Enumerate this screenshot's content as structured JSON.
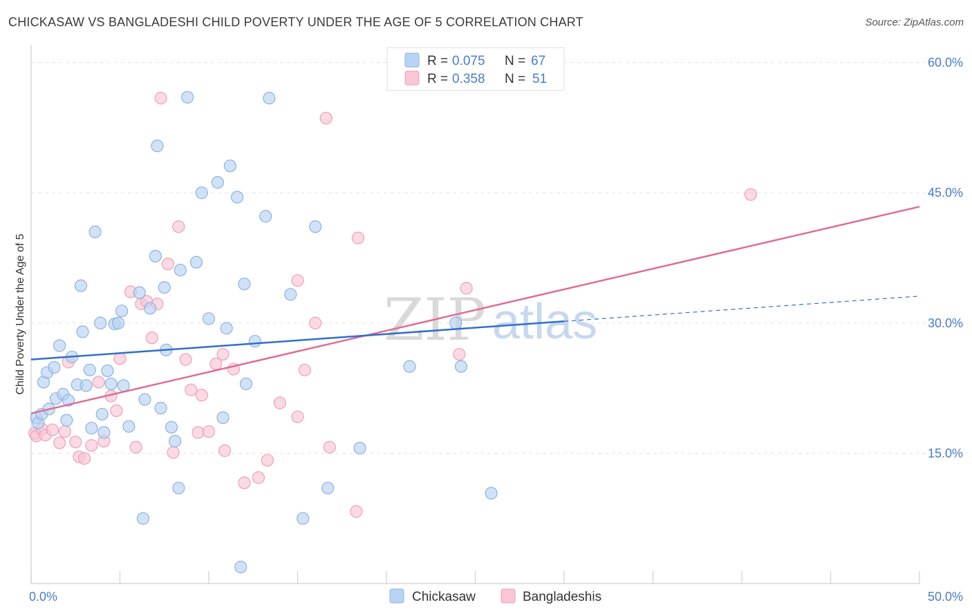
{
  "title": "CHICKASAW VS BANGLADESHI CHILD POVERTY UNDER THE AGE OF 5 CORRELATION CHART",
  "source": "Source: ZipAtlas.com",
  "watermark": {
    "zip": "ZIP",
    "atlas": "atlas"
  },
  "legend": [
    {
      "r_label": "R =",
      "r_value": "0.075",
      "n_label": "N =",
      "n_value": "67"
    },
    {
      "r_label": "R =",
      "r_value": "0.358",
      "n_label": "N =",
      "n_value": "51"
    }
  ],
  "colors": {
    "chickasaw_fill": "#b9d3f3",
    "chickasaw_stroke": "#8ab2e3",
    "chickasaw_line": "#2f6fcc",
    "bangladeshi_fill": "#f8c6d4",
    "bangladeshi_stroke": "#ef9fb8",
    "bangladeshi_line": "#e06b93",
    "tick": "#4a7cc8"
  },
  "chart_data": {
    "type": "scatter",
    "xlabel": "",
    "ylabel": "Child Poverty Under the Age of 5",
    "xlim": [
      0,
      50
    ],
    "ylim": [
      0,
      61
    ],
    "x_tick_labels": [
      {
        "value": 0,
        "label": "0.0%"
      },
      {
        "value": 50,
        "label": "50.0%"
      }
    ],
    "y_tick_labels": [
      {
        "value": 15,
        "label": "15.0%"
      },
      {
        "value": 30,
        "label": "30.0%"
      },
      {
        "value": 45,
        "label": "45.0%"
      },
      {
        "value": 60,
        "label": "60.0%"
      }
    ],
    "grid": true,
    "legend_position": "top-center",
    "series": [
      {
        "name": "Chickasaw",
        "trend": {
          "x0": 0,
          "y0": 25.8,
          "x1": 30,
          "y1": 30.2,
          "dash_to_x": 50,
          "dash_to_y": 33.1
        },
        "points": [
          [
            0.3,
            19.1
          ],
          [
            0.4,
            18.5
          ],
          [
            0.6,
            19.5
          ],
          [
            0.7,
            23.2
          ],
          [
            0.9,
            24.3
          ],
          [
            1.0,
            20.1
          ],
          [
            1.3,
            24.9
          ],
          [
            1.4,
            21.3
          ],
          [
            1.6,
            27.4
          ],
          [
            1.8,
            21.8
          ],
          [
            2.0,
            18.8
          ],
          [
            2.1,
            21.1
          ],
          [
            2.3,
            26.1
          ],
          [
            2.6,
            22.9
          ],
          [
            2.8,
            34.3
          ],
          [
            2.9,
            29.0
          ],
          [
            3.1,
            22.8
          ],
          [
            3.3,
            24.6
          ],
          [
            3.4,
            17.9
          ],
          [
            3.6,
            40.5
          ],
          [
            3.9,
            30.0
          ],
          [
            4.0,
            19.5
          ],
          [
            4.1,
            17.4
          ],
          [
            4.3,
            24.5
          ],
          [
            4.5,
            23.0
          ],
          [
            4.7,
            29.9
          ],
          [
            4.9,
            30.0
          ],
          [
            5.1,
            31.4
          ],
          [
            5.2,
            22.8
          ],
          [
            5.5,
            18.1
          ],
          [
            6.1,
            33.5
          ],
          [
            6.3,
            7.5
          ],
          [
            6.4,
            21.2
          ],
          [
            6.7,
            31.7
          ],
          [
            7.0,
            37.7
          ],
          [
            7.1,
            50.4
          ],
          [
            7.3,
            20.2
          ],
          [
            7.5,
            34.1
          ],
          [
            7.6,
            26.9
          ],
          [
            7.9,
            18.0
          ],
          [
            8.1,
            16.4
          ],
          [
            8.3,
            11.0
          ],
          [
            8.4,
            36.1
          ],
          [
            8.8,
            56.0
          ],
          [
            9.3,
            37.0
          ],
          [
            9.6,
            45.0
          ],
          [
            10.0,
            30.5
          ],
          [
            10.5,
            46.2
          ],
          [
            10.8,
            19.1
          ],
          [
            11.0,
            29.4
          ],
          [
            11.2,
            48.1
          ],
          [
            11.6,
            44.5
          ],
          [
            11.8,
            1.9
          ],
          [
            12.0,
            34.5
          ],
          [
            12.1,
            23.0
          ],
          [
            12.6,
            27.9
          ],
          [
            13.2,
            42.3
          ],
          [
            13.4,
            55.9
          ],
          [
            14.6,
            33.3
          ],
          [
            15.3,
            7.5
          ],
          [
            16.0,
            41.1
          ],
          [
            16.7,
            11.0
          ],
          [
            18.5,
            15.6
          ],
          [
            21.3,
            25.0
          ],
          [
            23.9,
            30.0
          ],
          [
            24.2,
            25.0
          ],
          [
            25.9,
            10.4
          ]
        ]
      },
      {
        "name": "Bangladeshis",
        "trend": {
          "x0": 0,
          "y0": 19.6,
          "x1": 50,
          "y1": 43.4
        },
        "points": [
          [
            0.2,
            17.3
          ],
          [
            0.3,
            17.0
          ],
          [
            0.6,
            17.8
          ],
          [
            0.8,
            17.1
          ],
          [
            1.2,
            17.7
          ],
          [
            1.6,
            16.2
          ],
          [
            1.9,
            17.5
          ],
          [
            2.1,
            25.5
          ],
          [
            2.5,
            16.3
          ],
          [
            2.7,
            14.6
          ],
          [
            3.0,
            14.4
          ],
          [
            3.4,
            15.9
          ],
          [
            3.8,
            23.2
          ],
          [
            4.1,
            16.4
          ],
          [
            4.5,
            21.6
          ],
          [
            4.8,
            19.9
          ],
          [
            5.0,
            25.9
          ],
          [
            5.6,
            33.6
          ],
          [
            5.9,
            15.7
          ],
          [
            6.2,
            32.2
          ],
          [
            6.5,
            32.5
          ],
          [
            6.8,
            28.3
          ],
          [
            7.1,
            32.2
          ],
          [
            7.3,
            55.9
          ],
          [
            7.7,
            36.8
          ],
          [
            8.0,
            15.1
          ],
          [
            8.3,
            41.1
          ],
          [
            8.7,
            25.8
          ],
          [
            9.0,
            22.3
          ],
          [
            9.4,
            17.4
          ],
          [
            9.6,
            21.7
          ],
          [
            10.0,
            17.5
          ],
          [
            10.4,
            25.3
          ],
          [
            10.8,
            26.4
          ],
          [
            10.9,
            15.3
          ],
          [
            11.4,
            24.7
          ],
          [
            12.0,
            11.6
          ],
          [
            12.8,
            12.2
          ],
          [
            13.3,
            14.2
          ],
          [
            14.0,
            20.8
          ],
          [
            15.0,
            34.9
          ],
          [
            15.0,
            19.2
          ],
          [
            15.4,
            24.6
          ],
          [
            16.0,
            30.0
          ],
          [
            16.6,
            53.6
          ],
          [
            16.8,
            15.7
          ],
          [
            18.3,
            8.3
          ],
          [
            18.4,
            39.8
          ],
          [
            24.1,
            26.4
          ],
          [
            24.5,
            34.0
          ],
          [
            40.5,
            44.8
          ]
        ]
      }
    ]
  }
}
